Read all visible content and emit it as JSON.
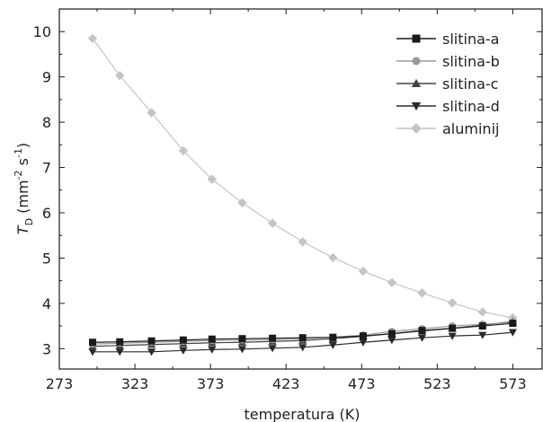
{
  "chart_data": {
    "type": "line",
    "xlabel": "temperatura (K)",
    "ylabel": {
      "italic": "T",
      "subscript": "D",
      "rest": " (mm",
      "sup1": "-2",
      "mid": " s",
      "sup2": "-1",
      "end": ")"
    },
    "xlim": [
      273,
      593
    ],
    "ylim": [
      2.55,
      10.5
    ],
    "xticks": [
      273,
      323,
      373,
      423,
      473,
      523,
      573
    ],
    "yticks": [
      3,
      4,
      5,
      6,
      7,
      8,
      9,
      10
    ],
    "grid": false,
    "legend_position": "top-right",
    "x": [
      295,
      313,
      334,
      355,
      374,
      394,
      414,
      434,
      454,
      474,
      493,
      513,
      533,
      553,
      573
    ],
    "series": [
      {
        "name": "slitina-a",
        "marker": "square",
        "color": "#1a1a1a",
        "values": [
          3.14,
          3.15,
          3.17,
          3.19,
          3.21,
          3.22,
          3.23,
          3.24,
          3.25,
          3.28,
          3.33,
          3.4,
          3.45,
          3.5,
          3.56
        ]
      },
      {
        "name": "slitina-b",
        "marker": "circle",
        "color": "#999999",
        "values": [
          3.1,
          3.12,
          3.14,
          3.16,
          3.18,
          3.19,
          3.2,
          3.22,
          3.25,
          3.3,
          3.38,
          3.44,
          3.5,
          3.54,
          3.58
        ]
      },
      {
        "name": "slitina-c",
        "marker": "triangle-up",
        "color": "#444444",
        "values": [
          3.05,
          3.07,
          3.09,
          3.11,
          3.13,
          3.14,
          3.16,
          3.18,
          3.22,
          3.27,
          3.33,
          3.39,
          3.45,
          3.52,
          3.6
        ]
      },
      {
        "name": "slitina-d",
        "marker": "triangle-down",
        "color": "#2a2a2a",
        "values": [
          2.93,
          2.93,
          2.93,
          2.96,
          2.98,
          2.99,
          3.01,
          3.03,
          3.08,
          3.14,
          3.19,
          3.24,
          3.28,
          3.3,
          3.36
        ]
      },
      {
        "name": "aluminij",
        "marker": "diamond",
        "color": "#c4c4c4",
        "values": [
          9.85,
          9.03,
          8.21,
          7.37,
          6.74,
          6.22,
          5.77,
          5.36,
          5.01,
          4.71,
          4.46,
          4.23,
          4.01,
          3.81,
          3.68
        ]
      }
    ]
  }
}
